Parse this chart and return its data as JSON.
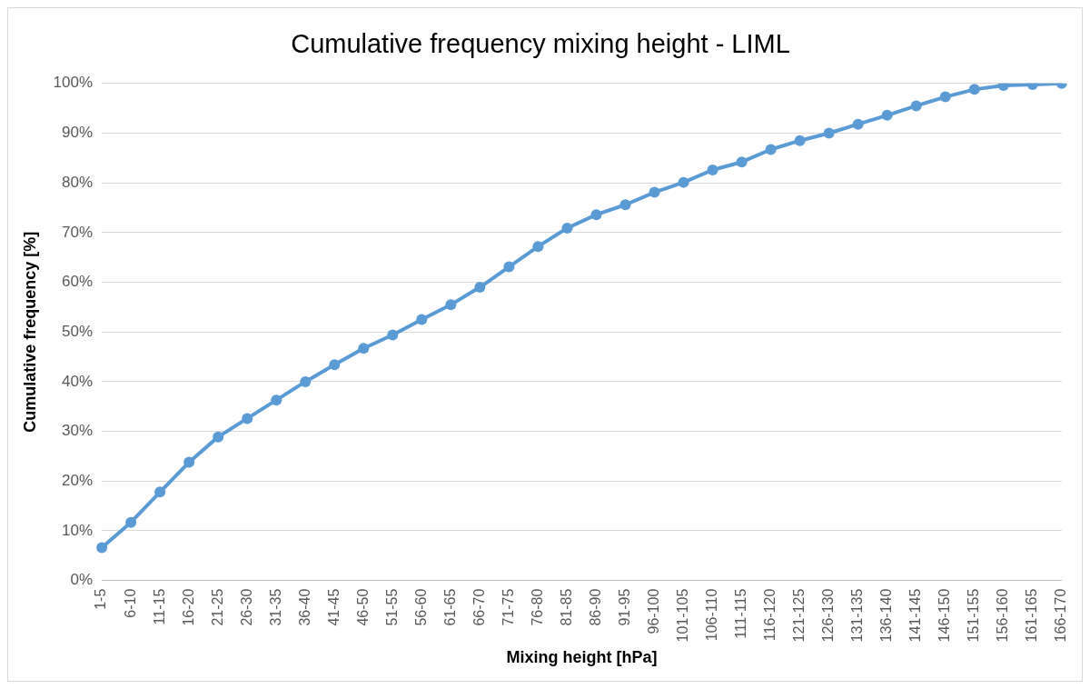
{
  "chart_data": {
    "type": "line",
    "title": "Cumulative frequency mixing height - LIML",
    "xlabel": "Mixing height [hPa]",
    "ylabel": "Cumulative frequency [%]",
    "categories": [
      "1-5",
      "6-10",
      "11-15",
      "16-20",
      "21-25",
      "26-30",
      "31-35",
      "36-40",
      "41-45",
      "46-50",
      "51-55",
      "56-60",
      "61-65",
      "66-70",
      "71-75",
      "76-80",
      "81-85",
      "86-90",
      "91-95",
      "96-100",
      "101-105",
      "106-110",
      "111-115",
      "116-120",
      "121-125",
      "126-130",
      "131-135",
      "136-140",
      "141-145",
      "146-150",
      "151-155",
      "156-160",
      "161-165",
      "166-170"
    ],
    "series": [
      {
        "color": "#5b9bd5",
        "values": [
          6.6,
          11.7,
          17.8,
          23.8,
          28.9,
          32.6,
          36.3,
          40.0,
          43.4,
          46.7,
          49.4,
          52.5,
          55.5,
          59.0,
          63.1,
          67.2,
          70.9,
          73.6,
          75.6,
          78.1,
          80.1,
          82.6,
          84.2,
          86.7,
          88.5,
          90.0,
          91.8,
          93.6,
          95.5,
          97.3,
          98.8,
          99.6,
          99.8,
          100
        ]
      }
    ],
    "ylim": [
      0,
      100
    ],
    "yticks": [
      {
        "value": 0,
        "label": "0%"
      },
      {
        "value": 10,
        "label": "10%"
      },
      {
        "value": 20,
        "label": "20%"
      },
      {
        "value": 30,
        "label": "30%"
      },
      {
        "value": 40,
        "label": "40%"
      },
      {
        "value": 50,
        "label": "50%"
      },
      {
        "value": 60,
        "label": "60%"
      },
      {
        "value": 70,
        "label": "70%"
      },
      {
        "value": 80,
        "label": "80%"
      },
      {
        "value": 90,
        "label": "90%"
      },
      {
        "value": 100,
        "label": "100%"
      }
    ],
    "grid": "y",
    "legend": false,
    "marker": "circle",
    "line_style": "solid"
  }
}
